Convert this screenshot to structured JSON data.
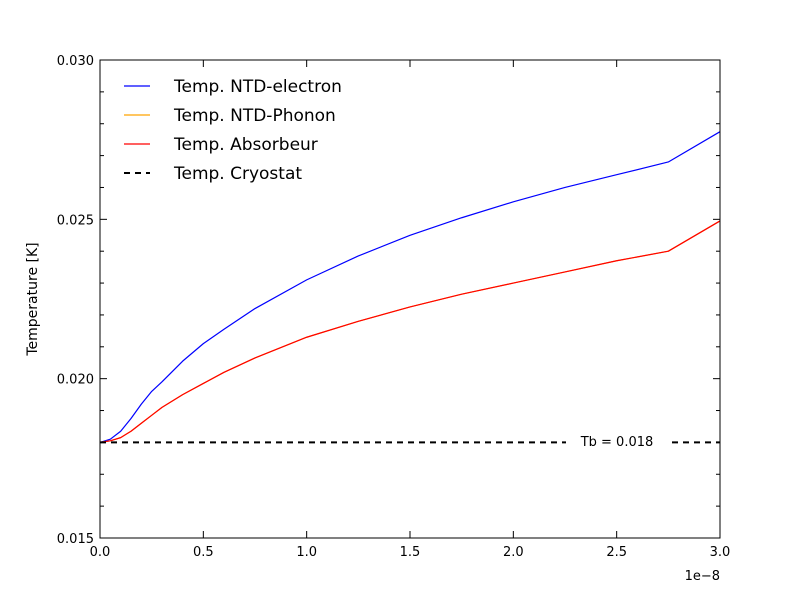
{
  "chart_data": {
    "type": "line",
    "xlabel": "",
    "ylabel": "Temperature [K]",
    "x_offset_label": "1e−8",
    "xlim": [
      0.0,
      3.0
    ],
    "ylim": [
      0.015,
      0.03
    ],
    "x_ticks": [
      "0.0",
      "0.5",
      "1.0",
      "1.5",
      "2.0",
      "2.5",
      "3.0"
    ],
    "y_ticks": [
      "0.015",
      "0.020",
      "0.025",
      "0.030"
    ],
    "grid": false,
    "legend_position": "top-left",
    "annotation": "Tb = 0.018",
    "x": [
      0.0,
      0.05,
      0.1,
      0.15,
      0.2,
      0.25,
      0.3,
      0.4,
      0.5,
      0.6,
      0.75,
      1.0,
      1.25,
      1.5,
      1.75,
      2.0,
      2.25,
      2.5,
      2.75,
      3.0
    ],
    "series": [
      {
        "name": "Temp. NTD-electron",
        "color": "#0000ff",
        "style": "solid",
        "values": [
          0.018,
          0.0181,
          0.01835,
          0.01875,
          0.0192,
          0.0196,
          0.0199,
          0.02055,
          0.0211,
          0.02155,
          0.0222,
          0.0231,
          0.02385,
          0.0245,
          0.02505,
          0.02555,
          0.026,
          0.0264,
          0.0268,
          0.02775
        ]
      },
      {
        "name": "Temp. NTD-Phonon",
        "color": "#ffa500",
        "style": "solid",
        "values": [
          0.018,
          0.01805,
          0.01815,
          0.01835,
          0.0186,
          0.01885,
          0.0191,
          0.0195,
          0.01985,
          0.0202,
          0.02065,
          0.0213,
          0.0218,
          0.02225,
          0.02265,
          0.023,
          0.02335,
          0.0237,
          0.024,
          0.02495
        ]
      },
      {
        "name": "Temp. Absorbeur",
        "color": "#ff0000",
        "style": "solid",
        "values": [
          0.018,
          0.01805,
          0.01815,
          0.01835,
          0.0186,
          0.01885,
          0.0191,
          0.0195,
          0.01985,
          0.0202,
          0.02065,
          0.0213,
          0.0218,
          0.02225,
          0.02265,
          0.023,
          0.02335,
          0.0237,
          0.024,
          0.02495
        ]
      },
      {
        "name": "Temp. Cryostat",
        "color": "#000000",
        "style": "dashed",
        "constant": 0.018
      }
    ]
  }
}
